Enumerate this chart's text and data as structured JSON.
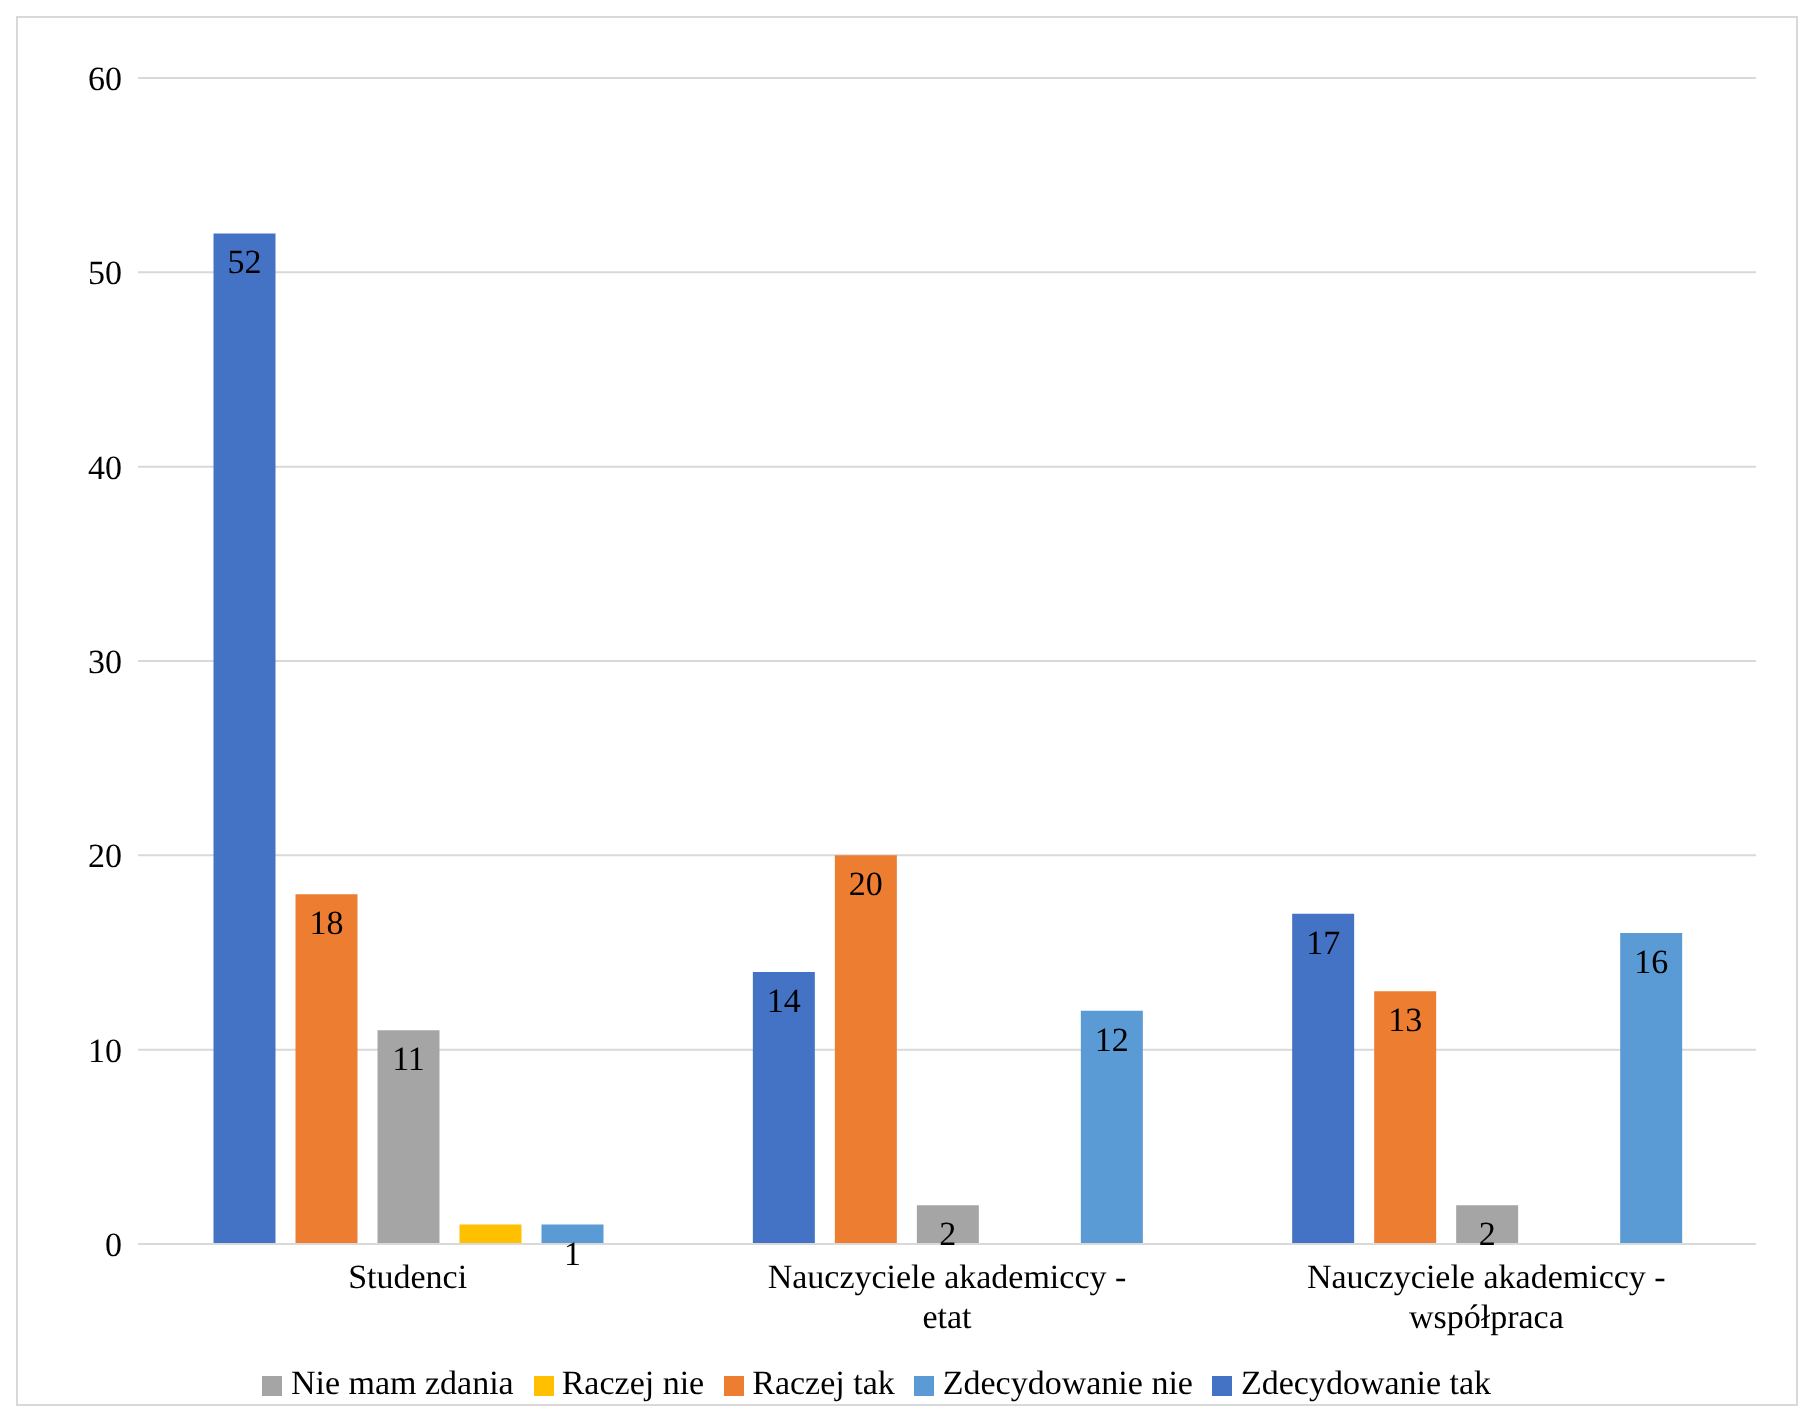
{
  "chart_data": {
    "type": "bar",
    "categories": [
      "Studenci",
      "Nauczyciele akademiccy - etat",
      "Nauczyciele akademiccy - współpraca"
    ],
    "series": [
      {
        "name": "Zdecydowanie tak",
        "color": "#4472c4",
        "values": [
          52,
          14,
          17
        ],
        "value_labels": [
          "52",
          "14",
          "17"
        ]
      },
      {
        "name": "Raczej tak",
        "color": "#ed7d31",
        "values": [
          18,
          20,
          13
        ],
        "value_labels": [
          "18",
          "20",
          "13"
        ]
      },
      {
        "name": "Nie mam zdania",
        "color": "#a5a5a5",
        "values": [
          11,
          2,
          2
        ],
        "value_labels": [
          "11",
          "2",
          "2"
        ]
      },
      {
        "name": "Raczej nie",
        "color": "#ffc000",
        "values": [
          1,
          0,
          0
        ],
        "value_labels": [
          null,
          null,
          null
        ]
      },
      {
        "name": "Zdecydowanie nie",
        "color": "#5b9bd5",
        "values": [
          1,
          12,
          16
        ],
        "value_labels": [
          "1",
          "12",
          "16"
        ]
      }
    ],
    "ylim": [
      0,
      60
    ],
    "yticks": [
      0,
      10,
      20,
      30,
      40,
      50,
      60
    ],
    "grid": "y",
    "legend": "bottom"
  }
}
